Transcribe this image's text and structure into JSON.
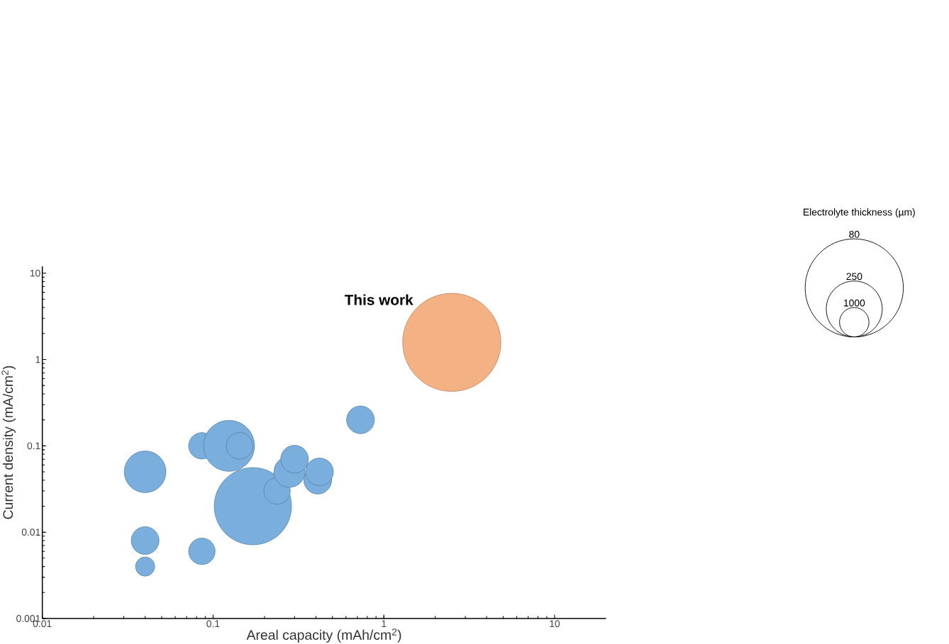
{
  "chart_data": {
    "type": "bubble",
    "xlabel": "Areal capacity (mAh/cm$^{2}$)",
    "ylabel": "Current density (mA/cm$^{2}$)",
    "legend_title": "Electrolyte thickness (µm)",
    "log": "xy",
    "xlim": [
      0.01,
      20
    ],
    "ylim": [
      0.001,
      12
    ],
    "xticks": [
      0.01,
      0.1,
      1,
      10
    ],
    "yticks": [
      0.001,
      0.01,
      0.1,
      1,
      10
    ],
    "annotations": [
      "80",
      "250",
      "1000"
    ],
    "series": [
      {
        "color": "#7aaedd",
        "x": [
          0.04,
          0.04,
          0.04,
          0.086,
          0.086,
          0.124,
          0.143,
          0.171,
          0.237,
          0.28,
          0.3,
          0.41,
          0.42,
          0.73
        ],
        "values": [
          0.05,
          0.008,
          0.004,
          0.1,
          0.006,
          0.1,
          0.1,
          0.02,
          0.03,
          0.05,
          0.07,
          0.04,
          0.05,
          0.2
        ],
        "sizes": [
          0.18,
          0.08,
          0.038,
          0.073,
          0.073,
          0.27,
          0.073,
          0.62,
          0.073,
          0.1,
          0.08,
          0.08,
          0.08,
          0.08
        ]
      },
      {
        "name": "This work",
        "color": "#f4b183",
        "x": [
          2.5
        ],
        "values": [
          1.58
        ],
        "sizes": [
          1
        ]
      }
    ]
  }
}
